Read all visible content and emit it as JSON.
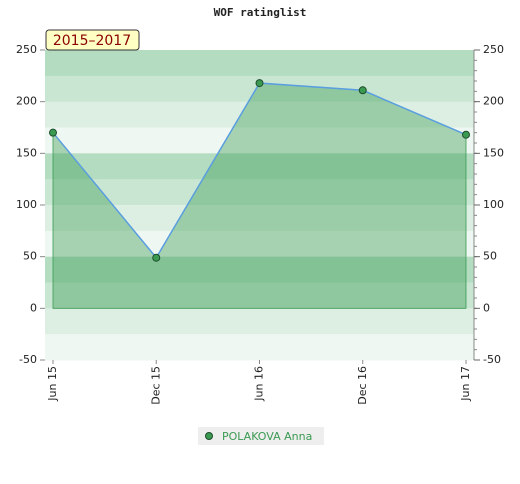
{
  "chart_data": {
    "type": "area",
    "title": "WOF ratinglist",
    "annotation": "2015–2017",
    "categories": [
      "Jun 15",
      "Dec 15",
      "Jun 16",
      "Dec 16",
      "Jun 17"
    ],
    "series": [
      {
        "name": "POLAKOVA Anna",
        "color": "#3a9a52",
        "values": [
          170,
          49,
          218,
          211,
          168
        ]
      }
    ],
    "ylim": [
      -50,
      250
    ],
    "yticks": [
      -50,
      0,
      50,
      100,
      150,
      200,
      250
    ],
    "y2lim": [
      -50,
      250
    ],
    "y2ticks": [
      -50,
      0,
      50,
      100,
      150,
      200,
      250
    ],
    "legend": "bottom"
  }
}
